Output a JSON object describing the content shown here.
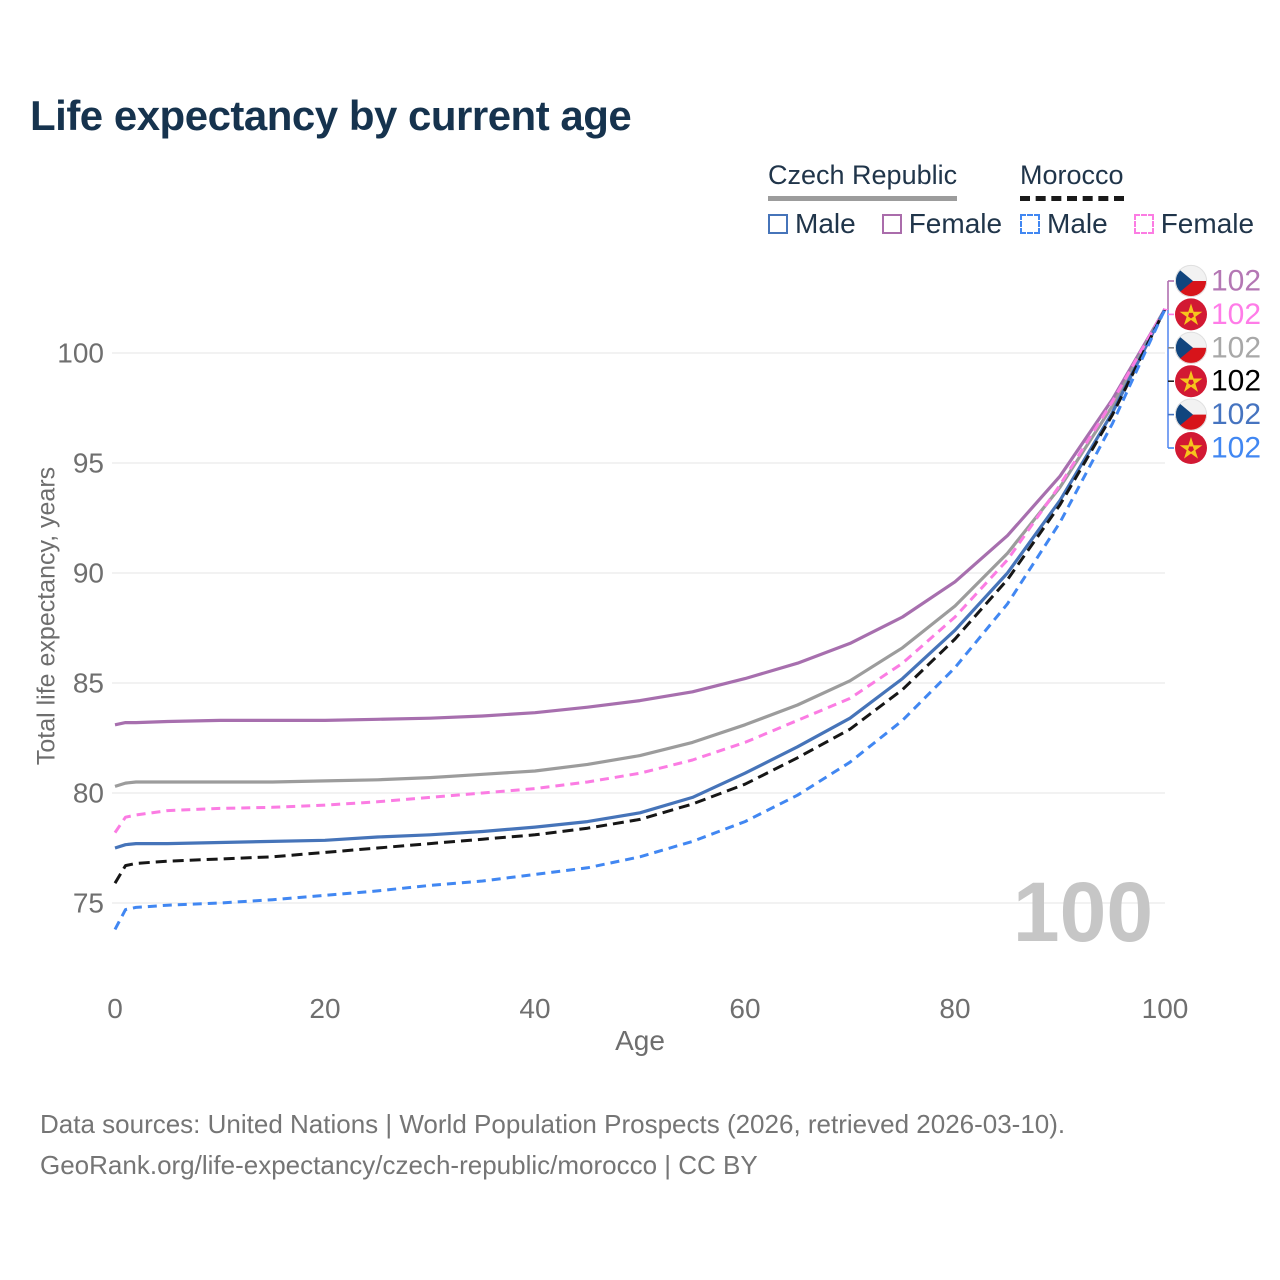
{
  "title": "Life expectancy by current age",
  "legend": {
    "groups": [
      {
        "label": "Czech Republic",
        "line_style": "solid",
        "underline_color": "#9c9c9c",
        "items": [
          {
            "label": "Male",
            "color": "#4674b9",
            "dashed": false
          },
          {
            "label": "Female",
            "color": "#aa6cab",
            "dashed": false
          }
        ]
      },
      {
        "label": "Morocco",
        "line_style": "dashed",
        "underline_color": "#1a1a1a",
        "items": [
          {
            "label": "Male",
            "color": "#4187f2",
            "dashed": true
          },
          {
            "label": "Female",
            "color": "#fc7ce3",
            "dashed": true
          }
        ]
      }
    ]
  },
  "chart_data": {
    "type": "line",
    "title": "Life expectancy by current age",
    "xlabel": "Age",
    "ylabel": "Total life expectancy, years",
    "xlim": [
      0,
      100
    ],
    "ylim": [
      73,
      103
    ],
    "xticks": [
      0,
      20,
      40,
      60,
      80,
      100
    ],
    "yticks": [
      75,
      80,
      85,
      90,
      95,
      100
    ],
    "grid": "horizontal",
    "legend_position": "top-right",
    "watermark": "100",
    "x": [
      0,
      1,
      2,
      5,
      10,
      15,
      20,
      25,
      30,
      35,
      40,
      45,
      50,
      55,
      60,
      65,
      70,
      75,
      80,
      85,
      90,
      95,
      100
    ],
    "series": [
      {
        "id": "czech-female",
        "name": "Czech Republic Female",
        "color": "#a76fae",
        "label_color": "#b477b4",
        "dashed": false,
        "flag": "czech",
        "row": 0,
        "end_label": "102",
        "values": [
          83.1,
          83.2,
          83.2,
          83.25,
          83.3,
          83.3,
          83.3,
          83.35,
          83.4,
          83.5,
          83.65,
          83.9,
          84.2,
          84.6,
          85.2,
          85.9,
          86.8,
          88.0,
          89.6,
          91.7,
          94.4,
          97.9,
          102
        ]
      },
      {
        "id": "czech-all",
        "name": "Czech Republic",
        "color": "#9c9c9c",
        "label_color": "#a8a8a8",
        "dashed": false,
        "flag": "czech",
        "row": 2,
        "end_label": "102",
        "values": [
          80.3,
          80.45,
          80.5,
          80.5,
          80.5,
          80.5,
          80.55,
          80.6,
          80.7,
          80.85,
          81.0,
          81.3,
          81.7,
          82.3,
          83.1,
          84.0,
          85.1,
          86.6,
          88.5,
          90.9,
          93.9,
          97.6,
          102
        ]
      },
      {
        "id": "czech-male",
        "name": "Czech Republic Male",
        "color": "#4674b9",
        "label_color": "#4674c0",
        "dashed": false,
        "flag": "czech",
        "row": 4,
        "end_label": "102",
        "values": [
          77.5,
          77.65,
          77.7,
          77.7,
          77.75,
          77.8,
          77.85,
          78.0,
          78.1,
          78.25,
          78.45,
          78.7,
          79.1,
          79.8,
          80.9,
          82.1,
          83.4,
          85.2,
          87.4,
          90.0,
          93.3,
          97.3,
          102
        ]
      },
      {
        "id": "morocco-female",
        "name": "Morocco Female",
        "color": "#fb7ce3",
        "label_color": "#ff7ce8",
        "dashed": true,
        "flag": "morocco",
        "row": 1,
        "end_label": "102",
        "values": [
          78.2,
          78.9,
          79.0,
          79.2,
          79.3,
          79.35,
          79.45,
          79.6,
          79.8,
          80.0,
          80.2,
          80.5,
          80.9,
          81.5,
          82.3,
          83.3,
          84.3,
          85.9,
          88.0,
          90.6,
          94.0,
          97.8,
          102
        ]
      },
      {
        "id": "morocco-all",
        "name": "Morocco",
        "color": "#161616",
        "label_color": "#000000",
        "dashed": true,
        "flag": "morocco",
        "row": 3,
        "end_label": "102",
        "values": [
          75.9,
          76.7,
          76.8,
          76.9,
          77.0,
          77.1,
          77.3,
          77.5,
          77.7,
          77.9,
          78.1,
          78.4,
          78.8,
          79.5,
          80.4,
          81.6,
          82.9,
          84.7,
          87.0,
          89.7,
          93.1,
          97.2,
          102
        ]
      },
      {
        "id": "morocco-male",
        "name": "Morocco Male",
        "color": "#4187f2",
        "label_color": "#4187f2",
        "dashed": true,
        "flag": "morocco",
        "row": 5,
        "end_label": "102",
        "values": [
          73.8,
          74.7,
          74.8,
          74.9,
          75.0,
          75.15,
          75.35,
          75.55,
          75.8,
          76.0,
          76.3,
          76.6,
          77.1,
          77.8,
          78.7,
          79.9,
          81.4,
          83.3,
          85.7,
          88.6,
          92.3,
          96.8,
          102
        ]
      }
    ]
  },
  "footer": {
    "line1": "Data sources: United Nations | World Population Prospects (2026, retrieved 2026-03-10).",
    "line2": "GeoRank.org/life-expectancy/czech-republic/morocco | CC BY"
  }
}
